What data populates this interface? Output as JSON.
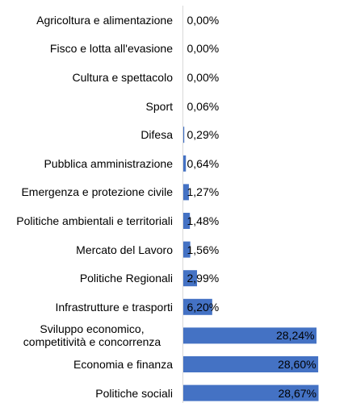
{
  "chart_data": {
    "type": "barh",
    "categories": [
      "Agricoltura e alimentazione",
      "Fisco e lotta all'evasione",
      "Cultura e spettacolo",
      "Sport",
      "Difesa",
      "Pubblica amministrazione",
      "Emergenza e protezione civile",
      "Politiche ambientali e territoriali",
      "Mercato del Lavoro",
      "Politiche Regionali",
      "Infrastrutture e trasporti",
      "Sviluppo economico, competitività e concorrenza",
      "Economia e finanza",
      "Politiche sociali"
    ],
    "values": [
      0,
      0,
      0,
      0.06,
      0.29,
      0.64,
      1.27,
      1.48,
      1.56,
      2.99,
      6.2,
      28.24,
      28.6,
      28.67
    ],
    "value_labels": [
      "0,00%",
      "0,00%",
      "0,00%",
      "0,06%",
      "0,29%",
      "0,64%",
      "1,27%",
      "1,48%",
      "1,56%",
      "2,99%",
      "6,20%",
      "28,24%",
      "28,60%",
      "28,67%"
    ],
    "color": "#4472c4"
  }
}
